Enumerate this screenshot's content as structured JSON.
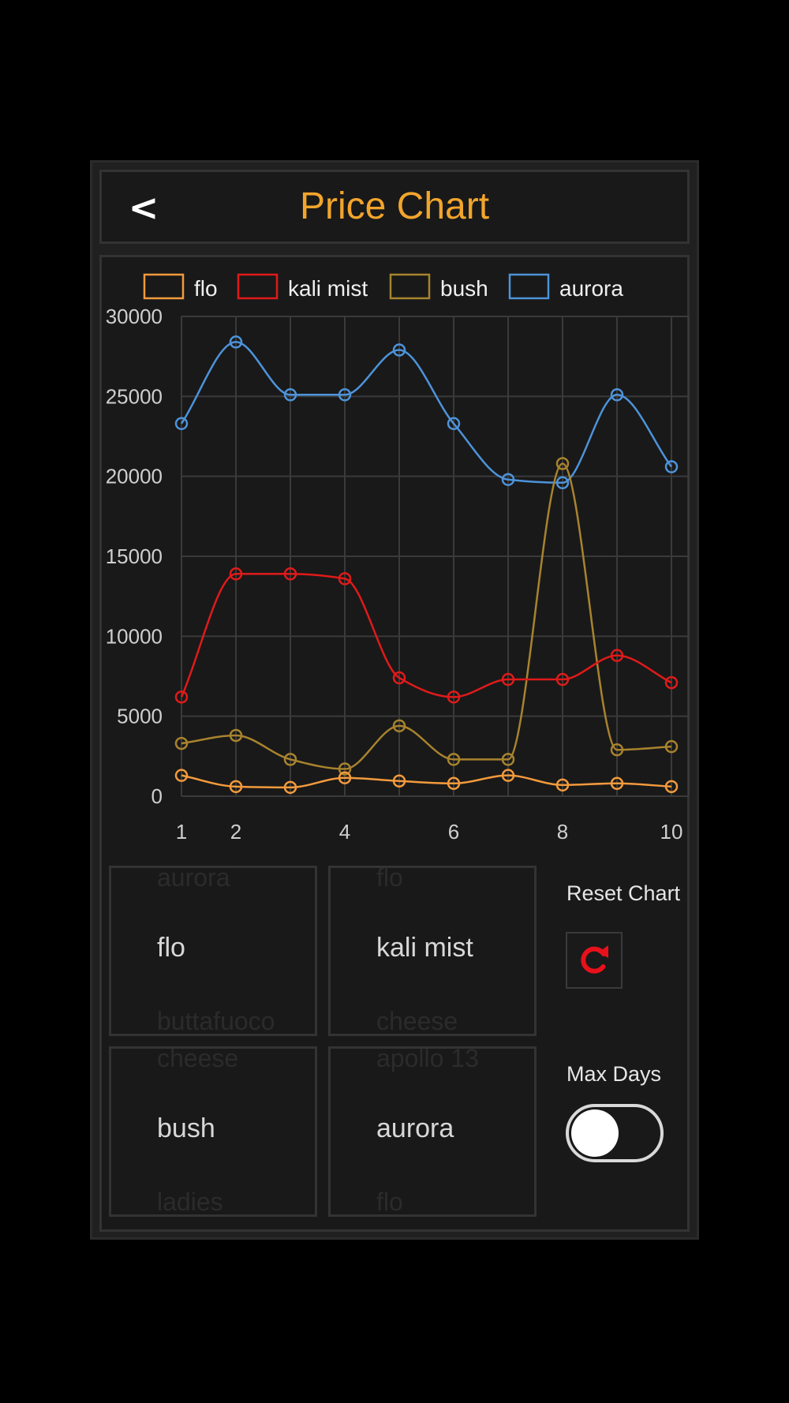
{
  "header": {
    "back_label": "<",
    "title": "Price Chart"
  },
  "colors": {
    "flo": "#f39a3c",
    "kali_mist": "#e01a1a",
    "bush": "#a8832e",
    "aurora": "#4d93d9",
    "title": "#f2a52c"
  },
  "chart_data": {
    "type": "line",
    "x": [
      1,
      2,
      3,
      4,
      5,
      6,
      7,
      8,
      9,
      10
    ],
    "x_tick_labels": [
      "1",
      "2",
      "4",
      "6",
      "8",
      "10"
    ],
    "y_tick_labels": [
      "30000",
      "25000",
      "20000",
      "15000",
      "10000",
      "5000",
      "0"
    ],
    "ylim": [
      0,
      30000
    ],
    "grid": true,
    "legend_position": "top",
    "series": [
      {
        "name": "flo",
        "color": "#f39a3c",
        "values": [
          1300,
          600,
          550,
          1150,
          950,
          800,
          1300,
          700,
          800,
          600
        ]
      },
      {
        "name": "kali mist",
        "color": "#e01a1a",
        "values": [
          6200,
          13900,
          13900,
          13600,
          7400,
          6200,
          7300,
          7300,
          8800,
          7100
        ]
      },
      {
        "name": "bush",
        "color": "#a8832e",
        "values": [
          3300,
          3800,
          2300,
          1700,
          4400,
          2300,
          2300,
          20800,
          2900,
          3100
        ]
      },
      {
        "name": "aurora",
        "color": "#4d93d9",
        "values": [
          23300,
          28400,
          25100,
          25100,
          27900,
          23300,
          19800,
          19600,
          25100,
          20600
        ]
      }
    ]
  },
  "pickers": [
    {
      "above": "aurora",
      "selected": "flo",
      "below": "buttafuoco"
    },
    {
      "above": "flo",
      "selected": "kali mist",
      "below": "cheese"
    },
    {
      "above": "cheese",
      "selected": "bush",
      "below": "ladies"
    },
    {
      "above": "apollo 13",
      "selected": "aurora",
      "below": "flo"
    }
  ],
  "controls": {
    "reset_label": "Reset Chart",
    "reset_icon": "refresh-icon",
    "max_days_label": "Max Days",
    "max_days_on": false
  }
}
